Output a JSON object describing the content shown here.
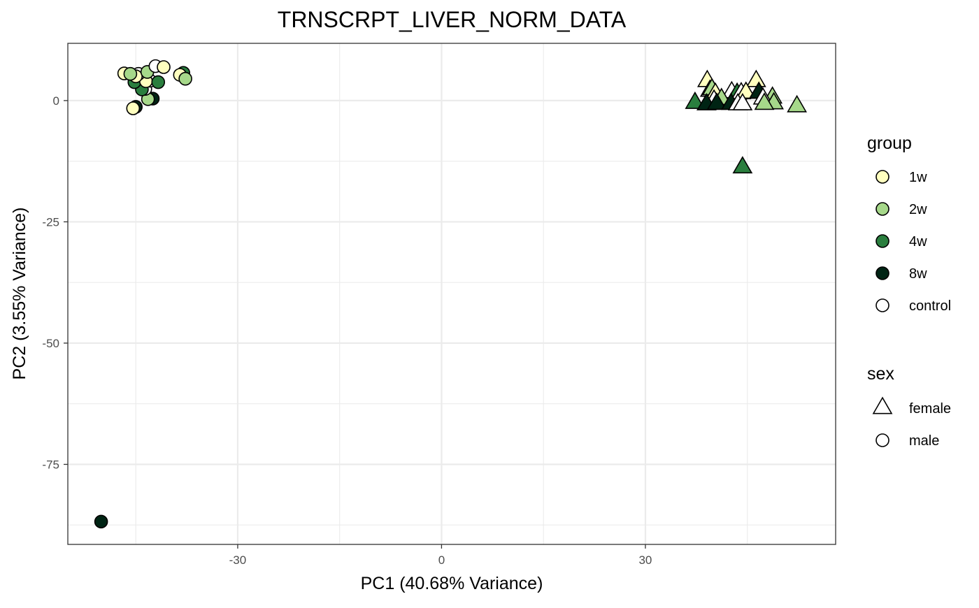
{
  "chart_data": {
    "type": "scatter",
    "title": "TRNSCRPT_LIVER_NORM_DATA",
    "xlabel": "PC1 (40.68% Variance)",
    "ylabel": "PC2 (3.55% Variance)",
    "xlim": [
      -55,
      58
    ],
    "ylim": [
      -91.5,
      11.8
    ],
    "x_ticks": [
      -30,
      0,
      30
    ],
    "y_ticks": [
      0,
      -25,
      -50,
      -75
    ],
    "x_tick_labels": [
      "-30",
      "0",
      "30"
    ],
    "y_tick_labels": [
      "0",
      "-25",
      "-50",
      "-75"
    ],
    "x_minor": [
      -45,
      -15,
      15,
      45
    ],
    "y_minor": [
      -12.5,
      -37.5,
      -62.5,
      -87.5
    ],
    "grid": true,
    "legend_position": "right",
    "legends": [
      {
        "title": "group",
        "aesthetic": "fill",
        "items": [
          {
            "label": "1w",
            "color": "#FFFFBF"
          },
          {
            "label": "2w",
            "color": "#A6D88A"
          },
          {
            "label": "4w",
            "color": "#2A7E3E"
          },
          {
            "label": "8w",
            "color": "#002414"
          },
          {
            "label": "control",
            "color": "#FFFFFF"
          }
        ]
      },
      {
        "title": "sex",
        "aesthetic": "shape",
        "items": [
          {
            "label": "female",
            "shape": "triangle"
          },
          {
            "label": "male",
            "shape": "circle"
          }
        ]
      }
    ],
    "points": [
      {
        "x": -45.0,
        "y": -1.3,
        "group": "8w",
        "sex": "male"
      },
      {
        "x": -45.4,
        "y": -1.6,
        "group": "1w",
        "sex": "male"
      },
      {
        "x": -42.5,
        "y": 0.4,
        "group": "8w",
        "sex": "male"
      },
      {
        "x": -43.2,
        "y": 0.3,
        "group": "2w",
        "sex": "male"
      },
      {
        "x": -43.6,
        "y": 2.4,
        "group": "control",
        "sex": "male"
      },
      {
        "x": -44.1,
        "y": 2.3,
        "group": "4w",
        "sex": "male"
      },
      {
        "x": -42.9,
        "y": 4.1,
        "group": "control",
        "sex": "male"
      },
      {
        "x": -45.2,
        "y": 3.8,
        "group": "4w",
        "sex": "male"
      },
      {
        "x": -43.5,
        "y": 4.0,
        "group": "1w",
        "sex": "male"
      },
      {
        "x": -41.7,
        "y": 3.8,
        "group": "4w",
        "sex": "male"
      },
      {
        "x": -44.6,
        "y": 5.5,
        "group": "control",
        "sex": "male"
      },
      {
        "x": -45.0,
        "y": 5.0,
        "group": "1w",
        "sex": "male"
      },
      {
        "x": -46.7,
        "y": 5.6,
        "group": "1w",
        "sex": "male"
      },
      {
        "x": -45.8,
        "y": 5.5,
        "group": "2w",
        "sex": "male"
      },
      {
        "x": -43.3,
        "y": 5.9,
        "group": "2w",
        "sex": "male"
      },
      {
        "x": -42.1,
        "y": 7.1,
        "group": "control",
        "sex": "male"
      },
      {
        "x": -40.9,
        "y": 6.9,
        "group": "1w",
        "sex": "male"
      },
      {
        "x": -38.0,
        "y": 5.7,
        "group": "4w",
        "sex": "male"
      },
      {
        "x": -38.5,
        "y": 5.3,
        "group": "1w",
        "sex": "male"
      },
      {
        "x": -37.7,
        "y": 4.5,
        "group": "2w",
        "sex": "male"
      },
      {
        "x": -50.1,
        "y": -86.8,
        "group": "8w",
        "sex": "male"
      },
      {
        "x": 39.1,
        "y": 4.0,
        "group": "1w",
        "sex": "female"
      },
      {
        "x": 46.3,
        "y": 4.0,
        "group": "1w",
        "sex": "female"
      },
      {
        "x": 39.5,
        "y": 2.0,
        "group": "control",
        "sex": "female"
      },
      {
        "x": 39.8,
        "y": 2.3,
        "group": "2w",
        "sex": "female"
      },
      {
        "x": 40.3,
        "y": 1.4,
        "group": "1w",
        "sex": "female"
      },
      {
        "x": 42.7,
        "y": 1.7,
        "group": "control",
        "sex": "female"
      },
      {
        "x": 43.5,
        "y": 1.4,
        "group": "4w",
        "sex": "female"
      },
      {
        "x": 44.1,
        "y": 1.5,
        "group": "control",
        "sex": "female"
      },
      {
        "x": 44.8,
        "y": 1.6,
        "group": "1w",
        "sex": "female"
      },
      {
        "x": 46.7,
        "y": 1.6,
        "group": "8w",
        "sex": "female"
      },
      {
        "x": 48.7,
        "y": 0.6,
        "group": "2w",
        "sex": "female"
      },
      {
        "x": 47.3,
        "y": 0.4,
        "group": "control",
        "sex": "female"
      },
      {
        "x": 41.2,
        "y": 0.3,
        "group": "2w",
        "sex": "female"
      },
      {
        "x": 40.1,
        "y": 0.0,
        "group": "control",
        "sex": "female"
      },
      {
        "x": 37.3,
        "y": -0.5,
        "group": "4w",
        "sex": "female"
      },
      {
        "x": 39.0,
        "y": -0.8,
        "group": "8w",
        "sex": "female"
      },
      {
        "x": 40.5,
        "y": -0.7,
        "group": "8w",
        "sex": "female"
      },
      {
        "x": 42.6,
        "y": -0.7,
        "group": "8w",
        "sex": "female"
      },
      {
        "x": 43.6,
        "y": -0.8,
        "group": "control",
        "sex": "female"
      },
      {
        "x": 44.3,
        "y": -0.8,
        "group": "control",
        "sex": "female"
      },
      {
        "x": 48.9,
        "y": -0.6,
        "group": "2w",
        "sex": "female"
      },
      {
        "x": 47.5,
        "y": -0.7,
        "group": "2w",
        "sex": "female"
      },
      {
        "x": 52.3,
        "y": -1.2,
        "group": "2w",
        "sex": "female"
      },
      {
        "x": 44.3,
        "y": -13.8,
        "group": "4w",
        "sex": "female"
      }
    ]
  }
}
